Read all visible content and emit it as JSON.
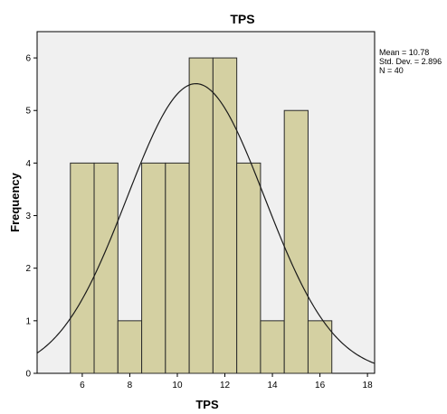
{
  "chart_data": {
    "type": "bar",
    "title": "TPS",
    "xlabel": "TPS",
    "ylabel": "Frequency",
    "xlim": [
      4.1,
      18.3
    ],
    "ylim": [
      0,
      6.5
    ],
    "x_ticks": [
      6,
      8,
      10,
      12,
      14,
      16,
      18
    ],
    "y_ticks": [
      0,
      1,
      2,
      3,
      4,
      5,
      6
    ],
    "bins": [
      {
        "start": 5.5,
        "end": 6.5,
        "value": 4
      },
      {
        "start": 6.5,
        "end": 7.5,
        "value": 4
      },
      {
        "start": 7.5,
        "end": 8.5,
        "value": 1
      },
      {
        "start": 8.5,
        "end": 9.5,
        "value": 4
      },
      {
        "start": 9.5,
        "end": 10.5,
        "value": 4
      },
      {
        "start": 10.5,
        "end": 11.5,
        "value": 6
      },
      {
        "start": 11.5,
        "end": 12.5,
        "value": 6
      },
      {
        "start": 12.5,
        "end": 13.5,
        "value": 4
      },
      {
        "start": 13.5,
        "end": 14.5,
        "value": 1
      },
      {
        "start": 14.5,
        "end": 15.5,
        "value": 5
      },
      {
        "start": 15.5,
        "end": 16.5,
        "value": 1
      }
    ],
    "normal_curve": {
      "mean": 10.78,
      "std": 2.896,
      "n": 40,
      "bin_width": 1
    },
    "stats_box": {
      "mean_label": "Mean = 10.78",
      "std_label": "Std. Dev. = 2.896",
      "n_label": "N = 40"
    },
    "colors": {
      "bar_fill": "#d4d0a2",
      "bar_stroke": "#2b2b2b",
      "plot_bg": "#f0f0f0",
      "curve": "#1a1a1a"
    },
    "legend_position": "right"
  }
}
